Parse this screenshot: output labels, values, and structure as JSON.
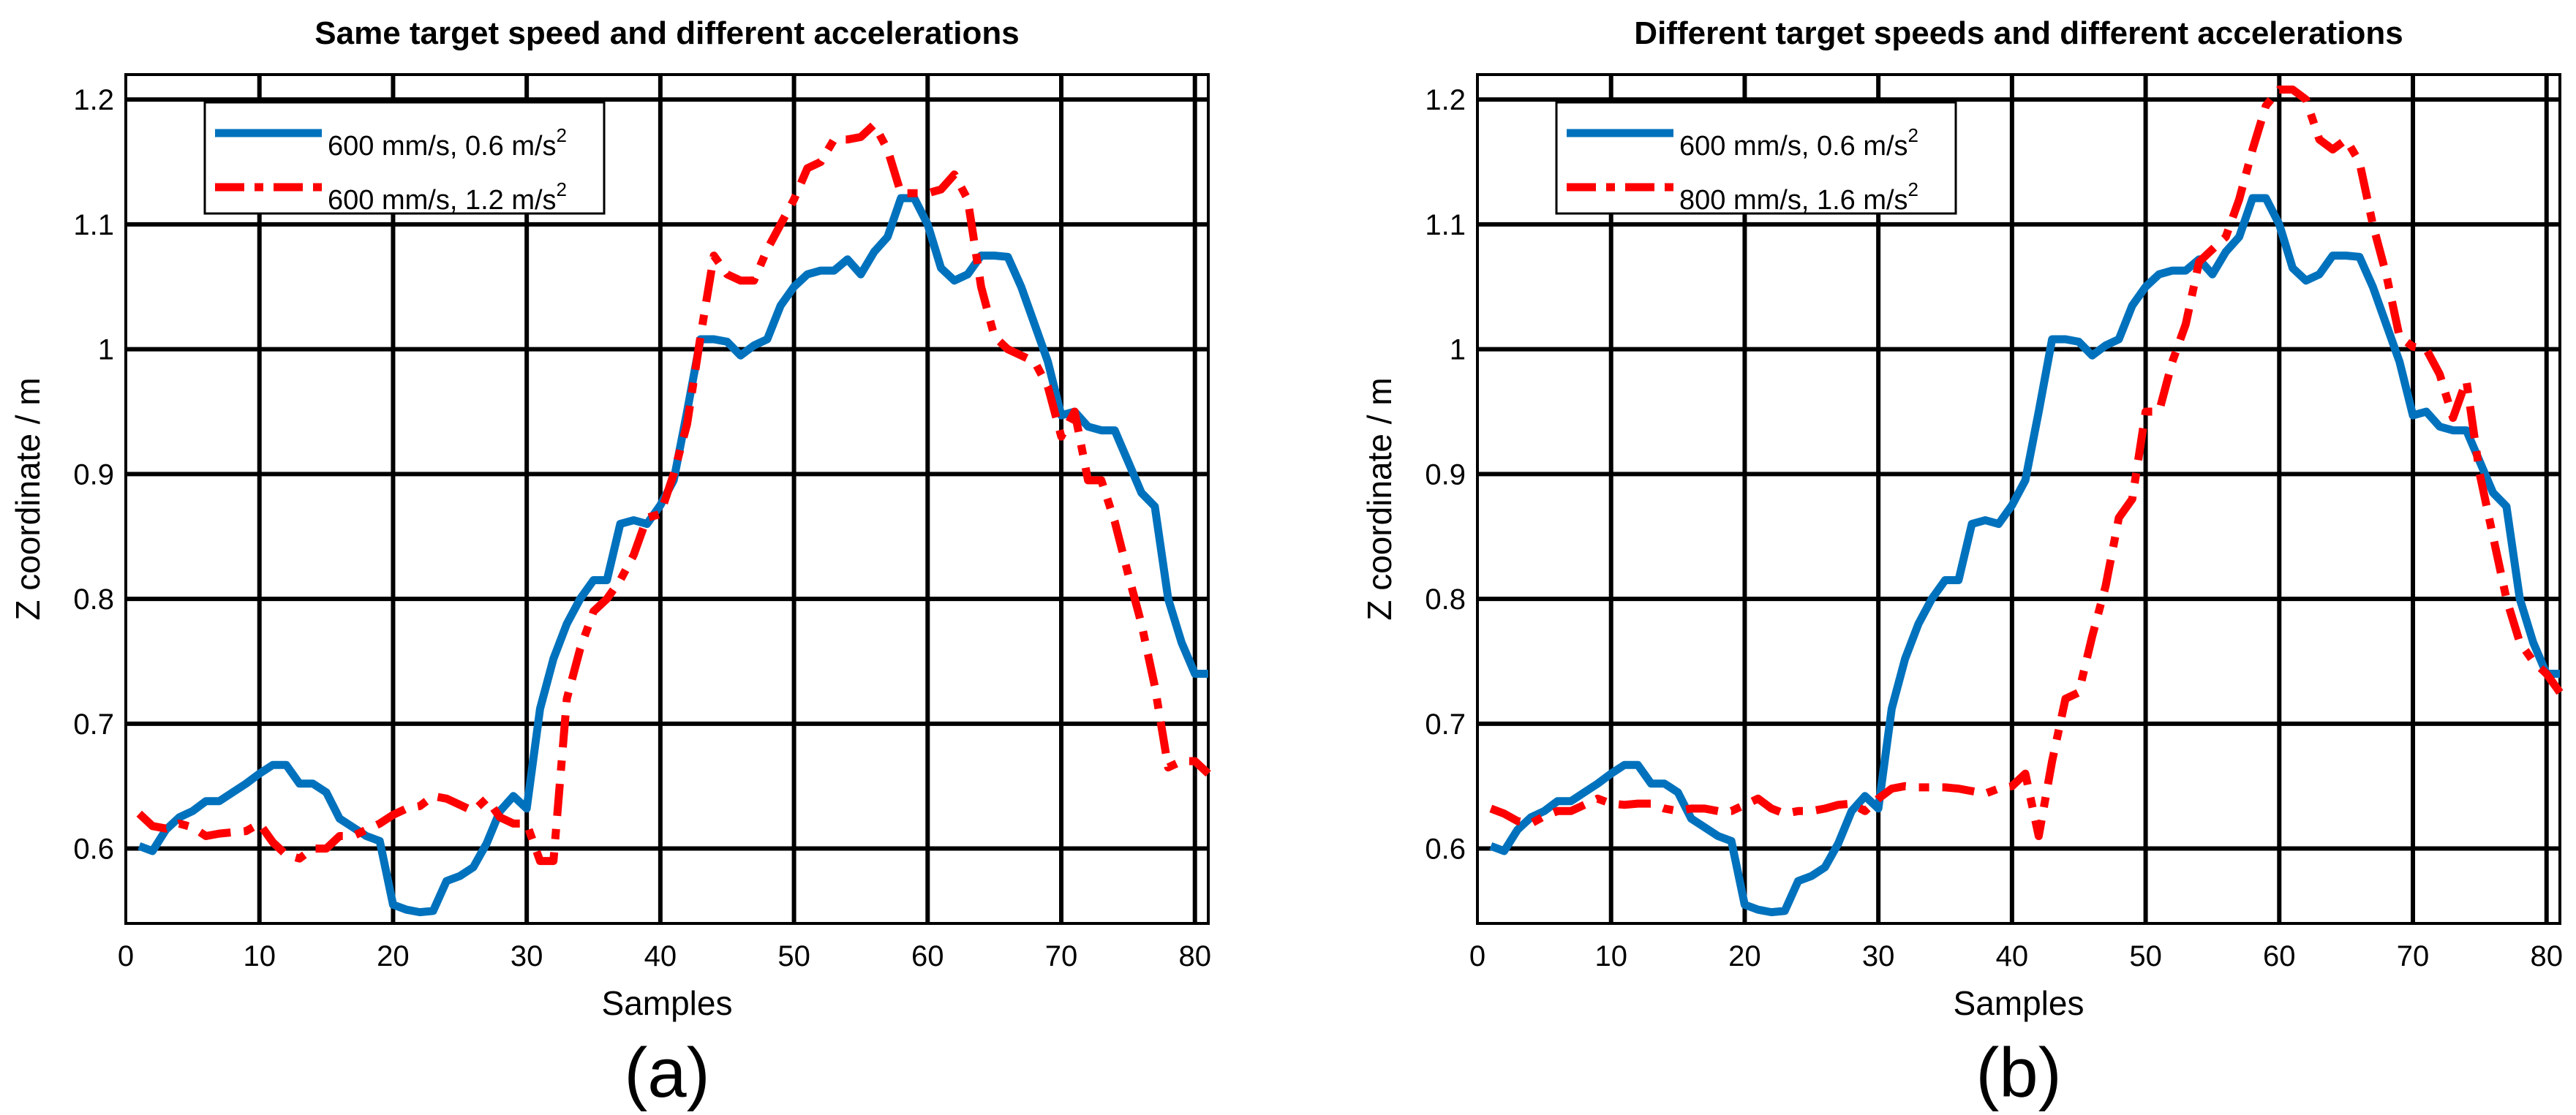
{
  "chart_data": [
    {
      "type": "line",
      "title": "Same target speed and different accelerations",
      "xlabel": "Samples",
      "ylabel": "Z coordinate / m",
      "panel_label": "(a)",
      "xlim": [
        0,
        81
      ],
      "ylim": [
        0.54,
        1.22
      ],
      "xticks": [
        0,
        10,
        20,
        30,
        40,
        50,
        60,
        70,
        80
      ],
      "yticks": [
        0.6,
        0.7,
        0.8,
        0.9,
        1,
        1.1,
        1.2
      ],
      "ytick_labels": [
        "0.6",
        "0.7",
        "0.8",
        "0.9",
        "1",
        "1.1",
        "1.2"
      ],
      "grid": true,
      "legend_position": "top-left",
      "series": [
        {
          "name": "600 mm/s, 0.6 m/s",
          "name_sup": "2",
          "color": "#0072BD",
          "style": "solid",
          "x": [
            1,
            2,
            3,
            4,
            5,
            6,
            7,
            8,
            9,
            10,
            11,
            12,
            13,
            14,
            15,
            16,
            17,
            18,
            19,
            20,
            21,
            22,
            23,
            24,
            25,
            26,
            27,
            28,
            29,
            30,
            31,
            32,
            33,
            34,
            35,
            36,
            37,
            38,
            39,
            40,
            41,
            42,
            43,
            44,
            45,
            46,
            47,
            48,
            49,
            50,
            51,
            52,
            53,
            54,
            55,
            56,
            57,
            58,
            59,
            60,
            61,
            62,
            63,
            64,
            65,
            66,
            67,
            68,
            69,
            70,
            71,
            72,
            73,
            74,
            75,
            76,
            77,
            78,
            79,
            80,
            81
          ],
          "y": [
            0.602,
            0.598,
            0.615,
            0.625,
            0.63,
            0.638,
            0.638,
            0.645,
            0.652,
            0.66,
            0.667,
            0.667,
            0.652,
            0.652,
            0.645,
            0.624,
            0.617,
            0.61,
            0.606,
            0.555,
            0.551,
            0.549,
            0.55,
            0.574,
            0.578,
            0.585,
            0.604,
            0.63,
            0.642,
            0.632,
            0.712,
            0.752,
            0.78,
            0.8,
            0.815,
            0.815,
            0.86,
            0.863,
            0.86,
            0.875,
            0.895,
            0.95,
            1.008,
            1.008,
            1.006,
            0.995,
            1.003,
            1.008,
            1.035,
            1.05,
            1.06,
            1.063,
            1.063,
            1.072,
            1.06,
            1.078,
            1.09,
            1.121,
            1.121,
            1.1,
            1.065,
            1.055,
            1.06,
            1.075,
            1.075,
            1.074,
            1.05,
            1.02,
            0.99,
            0.947,
            0.95,
            0.938,
            0.935,
            0.935,
            0.91,
            0.885,
            0.874,
            0.8,
            0.765,
            0.74,
            0.74
          ]
        },
        {
          "name": "600 mm/s, 1.2 m/s",
          "name_sup": "2",
          "color": "#FF0000",
          "style": "dashdot",
          "x": [
            1,
            2,
            3,
            4,
            5,
            6,
            7,
            8,
            9,
            10,
            11,
            12,
            13,
            14,
            15,
            16,
            17,
            18,
            19,
            20,
            21,
            22,
            23,
            24,
            25,
            26,
            27,
            28,
            29,
            30,
            31,
            32,
            33,
            34,
            35,
            36,
            37,
            38,
            39,
            40,
            41,
            42,
            43,
            44,
            45,
            46,
            47,
            48,
            49,
            50,
            51,
            52,
            53,
            54,
            55,
            56,
            57,
            58,
            59,
            60,
            61,
            62,
            63,
            64,
            65,
            66,
            67,
            68,
            69,
            70,
            71,
            72,
            73,
            74,
            75,
            76,
            77,
            78,
            79,
            80,
            81
          ],
          "y": [
            0.628,
            0.618,
            0.616,
            0.62,
            0.617,
            0.61,
            0.612,
            0.613,
            0.614,
            0.62,
            0.605,
            0.595,
            0.592,
            0.6,
            0.6,
            0.61,
            0.61,
            0.615,
            0.62,
            0.627,
            0.632,
            0.634,
            0.642,
            0.64,
            0.635,
            0.63,
            0.64,
            0.625,
            0.62,
            0.62,
            0.59,
            0.59,
            0.72,
            0.76,
            0.79,
            0.8,
            0.815,
            0.835,
            0.865,
            0.868,
            0.9,
            0.94,
            1.01,
            1.075,
            1.06,
            1.055,
            1.055,
            1.08,
            1.1,
            1.12,
            1.145,
            1.15,
            1.168,
            1.168,
            1.17,
            1.18,
            1.16,
            1.125,
            1.125,
            1.125,
            1.128,
            1.14,
            1.12,
            1.05,
            1.01,
            1.0,
            0.995,
            0.99,
            0.97,
            0.93,
            0.95,
            0.895,
            0.895,
            0.862,
            0.82,
            0.78,
            0.73,
            0.665,
            0.67,
            0.67,
            0.66
          ]
        }
      ]
    },
    {
      "type": "line",
      "title": "Different target speeds and different accelerations",
      "xlabel": "Samples",
      "ylabel": "Z coordinate / m",
      "panel_label": "(b)",
      "xlim": [
        0,
        81
      ],
      "ylim": [
        0.54,
        1.22
      ],
      "xticks": [
        0,
        10,
        20,
        30,
        40,
        50,
        60,
        70,
        80
      ],
      "yticks": [
        0.6,
        0.7,
        0.8,
        0.9,
        1,
        1.1,
        1.2
      ],
      "ytick_labels": [
        "0.6",
        "0.7",
        "0.8",
        "0.9",
        "1",
        "1.1",
        "1.2"
      ],
      "grid": true,
      "legend_position": "top-left",
      "series": [
        {
          "name": "600 mm/s, 0.6 m/s",
          "name_sup": "2",
          "color": "#0072BD",
          "style": "solid",
          "x": [
            1,
            2,
            3,
            4,
            5,
            6,
            7,
            8,
            9,
            10,
            11,
            12,
            13,
            14,
            15,
            16,
            17,
            18,
            19,
            20,
            21,
            22,
            23,
            24,
            25,
            26,
            27,
            28,
            29,
            30,
            31,
            32,
            33,
            34,
            35,
            36,
            37,
            38,
            39,
            40,
            41,
            42,
            43,
            44,
            45,
            46,
            47,
            48,
            49,
            50,
            51,
            52,
            53,
            54,
            55,
            56,
            57,
            58,
            59,
            60,
            61,
            62,
            63,
            64,
            65,
            66,
            67,
            68,
            69,
            70,
            71,
            72,
            73,
            74,
            75,
            76,
            77,
            78,
            79,
            80,
            81
          ],
          "y": [
            0.602,
            0.598,
            0.615,
            0.625,
            0.63,
            0.638,
            0.638,
            0.645,
            0.652,
            0.66,
            0.667,
            0.667,
            0.652,
            0.652,
            0.645,
            0.624,
            0.617,
            0.61,
            0.606,
            0.555,
            0.551,
            0.549,
            0.55,
            0.574,
            0.578,
            0.585,
            0.604,
            0.63,
            0.642,
            0.632,
            0.712,
            0.752,
            0.78,
            0.8,
            0.815,
            0.815,
            0.86,
            0.863,
            0.86,
            0.875,
            0.895,
            0.95,
            1.008,
            1.008,
            1.006,
            0.995,
            1.003,
            1.008,
            1.035,
            1.05,
            1.06,
            1.063,
            1.063,
            1.072,
            1.06,
            1.078,
            1.09,
            1.121,
            1.121,
            1.1,
            1.065,
            1.055,
            1.06,
            1.075,
            1.075,
            1.074,
            1.05,
            1.02,
            0.99,
            0.947,
            0.95,
            0.938,
            0.935,
            0.935,
            0.91,
            0.885,
            0.874,
            0.8,
            0.765,
            0.74,
            0.74
          ]
        },
        {
          "name": "800 mm/s, 1.6 m/s",
          "name_sup": "2",
          "color": "#FF0000",
          "style": "dashdot",
          "x": [
            1,
            2,
            3,
            4,
            5,
            6,
            7,
            8,
            9,
            10,
            11,
            12,
            13,
            14,
            15,
            16,
            17,
            18,
            19,
            20,
            21,
            22,
            23,
            24,
            25,
            26,
            27,
            28,
            29,
            30,
            31,
            32,
            33,
            34,
            35,
            36,
            37,
            38,
            39,
            40,
            41,
            42,
            43,
            44,
            45,
            46,
            47,
            48,
            49,
            50,
            51,
            52,
            53,
            54,
            55,
            56,
            57,
            58,
            59,
            60,
            61,
            62,
            63,
            64,
            65,
            66,
            67,
            68,
            69,
            70,
            71,
            72,
            73,
            74,
            75,
            76,
            77,
            78,
            79,
            80,
            81
          ],
          "y": [
            0.632,
            0.628,
            0.622,
            0.62,
            0.626,
            0.63,
            0.63,
            0.635,
            0.64,
            0.636,
            0.635,
            0.636,
            0.636,
            0.632,
            0.63,
            0.632,
            0.632,
            0.63,
            0.63,
            0.635,
            0.64,
            0.632,
            0.628,
            0.63,
            0.63,
            0.632,
            0.635,
            0.636,
            0.63,
            0.64,
            0.648,
            0.65,
            0.649,
            0.649,
            0.649,
            0.648,
            0.646,
            0.644,
            0.648,
            0.65,
            0.66,
            0.61,
            0.67,
            0.72,
            0.725,
            0.77,
            0.81,
            0.865,
            0.88,
            0.95,
            0.95,
            0.99,
            1.02,
            1.07,
            1.08,
            1.09,
            1.12,
            1.16,
            1.195,
            1.208,
            1.208,
            1.2,
            1.168,
            1.16,
            1.168,
            1.15,
            1.1,
            1.06,
            1.01,
            1.002,
            1.0,
            0.98,
            0.945,
            0.975,
            0.9,
            0.85,
            0.8,
            0.765,
            0.75,
            0.74,
            0.725
          ]
        }
      ]
    }
  ]
}
